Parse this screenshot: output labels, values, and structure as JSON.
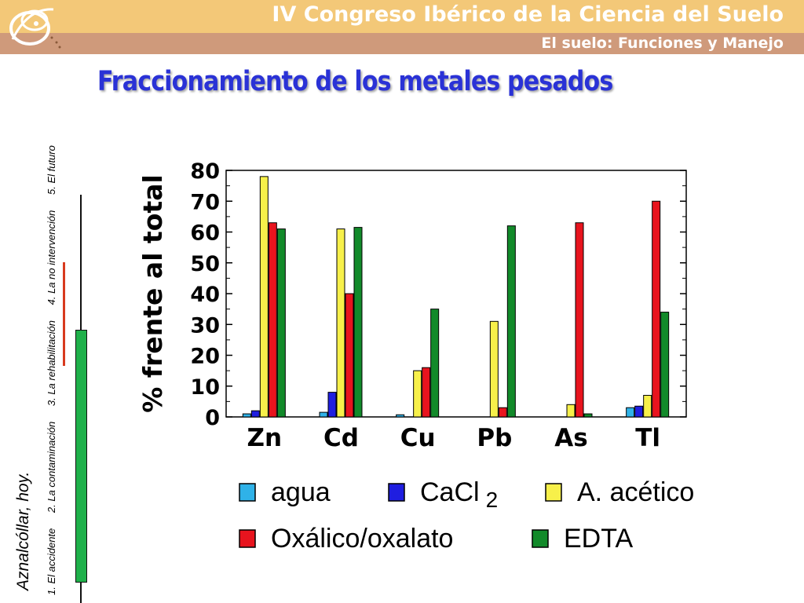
{
  "header": {
    "conference_title": "IV Congreso Ibérico de la Ciencia del Suelo",
    "subtitle": "El suelo: Funciones y Manejo",
    "colors": {
      "top_band": "#f3c878",
      "bottom_band": "#cf9a7b",
      "header_text": "#ffffff"
    }
  },
  "slide": {
    "title": "Fraccionamiento de los metales pesados",
    "title_color": "#2a32d6"
  },
  "sidebar": {
    "town_label": "Aznalcóllar, hoy.",
    "nav_items": [
      {
        "label": "1. El accidente"
      },
      {
        "label": "2. La contaminación"
      },
      {
        "label": "3. La rehabilitación"
      },
      {
        "label": "4. La no intervención"
      },
      {
        "label": "5. El futuro"
      }
    ],
    "colors": {
      "progress": "#1fb04a",
      "current_marker": "#d83a1e"
    }
  },
  "chart_data": {
    "type": "bar",
    "ylabel": "% frente al total",
    "ylim": [
      0,
      80
    ],
    "yticks": [
      "0",
      "10",
      "20",
      "30",
      "40",
      "50",
      "60",
      "70",
      "80"
    ],
    "categories": [
      "Zn",
      "Cd",
      "Cu",
      "Pb",
      "As",
      "Tl"
    ],
    "series": [
      {
        "name": "agua",
        "name_sub": "",
        "color": "#2fb2e8",
        "values": [
          1,
          1.5,
          0.7,
          0,
          0,
          3
        ]
      },
      {
        "name": "CaCl",
        "name_sub": "2",
        "color": "#1f1ee0",
        "values": [
          2,
          8,
          0,
          0,
          0,
          3.5
        ]
      },
      {
        "name": "A. acético",
        "name_sub": "",
        "color": "#f7f04a",
        "values": [
          78,
          61,
          15,
          31,
          4,
          7
        ]
      },
      {
        "name": "Oxálico/oxalato",
        "name_sub": "",
        "color": "#e8141e",
        "values": [
          63,
          40,
          16,
          3,
          63,
          70
        ]
      },
      {
        "name": "EDTA",
        "name_sub": "",
        "color": "#128a2a",
        "values": [
          61,
          61.5,
          35,
          62,
          1,
          34
        ]
      }
    ],
    "grid": false,
    "legend_position": "bottom"
  }
}
